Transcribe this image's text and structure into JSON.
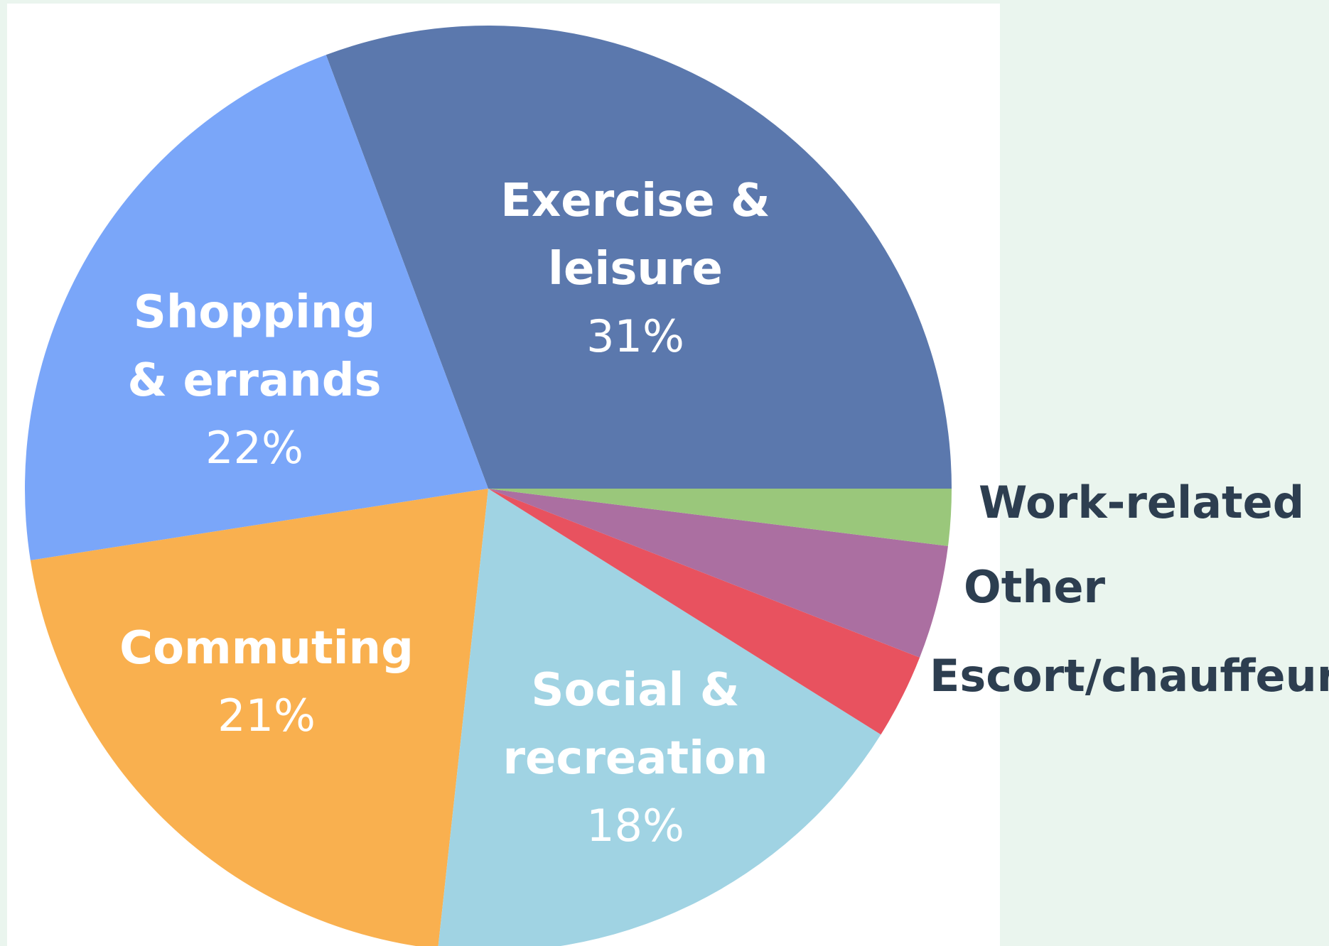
{
  "chart_data": {
    "type": "pie",
    "categories": [
      "Exercise & leisure",
      "Shopping & errands",
      "Commuting",
      "Social & recreation",
      "Escort/chauffeur",
      "Other",
      "Work-related"
    ],
    "values": [
      31,
      22,
      21,
      18,
      3,
      4,
      2
    ],
    "value_labels": [
      "31%",
      "22%",
      "21%",
      "18%",
      null,
      null,
      null
    ],
    "colors": [
      "#5b78ad",
      "#7aa6f9",
      "#f9b04f",
      "#a0d3e3",
      "#e8525f",
      "#ab6fa1",
      "#9ac77b"
    ]
  }
}
